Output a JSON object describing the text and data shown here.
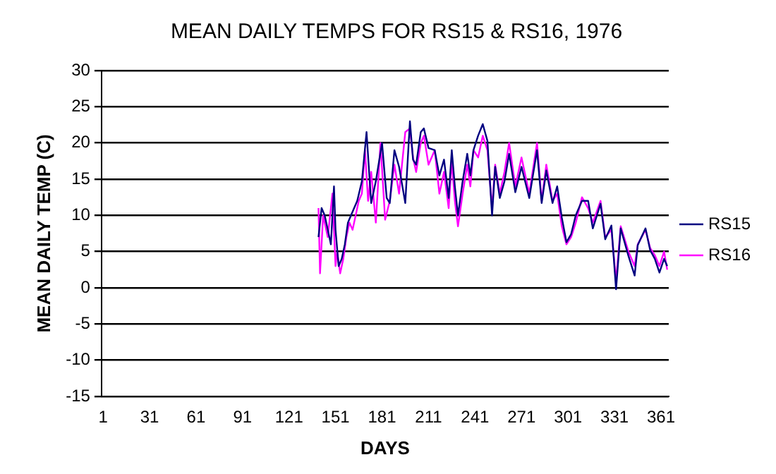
{
  "chart_data": {
    "type": "line",
    "title": "MEAN DAILY TEMPS FOR RS15 & RS16, 1976",
    "xlabel": "DAYS",
    "ylabel": "MEAN DAILY TEMP (C)",
    "xlim": [
      0,
      366
    ],
    "xticks": [
      1,
      31,
      61,
      91,
      121,
      151,
      181,
      211,
      241,
      271,
      301,
      331,
      361
    ],
    "ylim": [
      -15,
      30
    ],
    "yticks": [
      -15,
      -10,
      -5,
      0,
      5,
      10,
      15,
      20,
      25,
      30
    ],
    "grid": "y",
    "legend": "right",
    "series": [
      {
        "name": "RS15",
        "color": "#000080",
        "x": [
          140,
          142,
          144,
          146,
          148,
          149,
          150,
          151,
          153,
          155,
          157,
          159,
          161,
          163,
          165,
          168,
          171,
          174,
          177,
          181,
          184,
          186,
          189,
          192,
          196,
          199,
          201,
          203,
          206,
          208,
          211,
          215,
          218,
          221,
          224,
          226,
          228,
          230,
          233,
          236,
          238,
          240,
          243,
          246,
          249,
          252,
          254,
          257,
          260,
          263,
          267,
          271,
          276,
          281,
          284,
          287,
          291,
          294,
          297,
          300,
          303,
          306,
          310,
          314,
          317,
          322,
          325,
          329,
          332,
          335,
          340,
          344,
          346,
          351,
          354,
          357,
          360,
          363,
          365
        ],
        "values": [
          7,
          11,
          10,
          8,
          6,
          10,
          14,
          8,
          3,
          4,
          6,
          9,
          10,
          11,
          12,
          14.7,
          21.5,
          11.7,
          14.7,
          20,
          12.4,
          11.7,
          19,
          16.7,
          11.7,
          23,
          17.7,
          17,
          21.5,
          22,
          19.3,
          19,
          15.5,
          17.7,
          12.4,
          19,
          14,
          10,
          14.7,
          18.5,
          15.5,
          19,
          21,
          22.6,
          20.3,
          10,
          16.7,
          12.4,
          14.7,
          18.5,
          13.2,
          16.7,
          12.4,
          19,
          11.7,
          16.2,
          11.7,
          14,
          9.7,
          6.3,
          7.4,
          10,
          12,
          12,
          8.2,
          11.6,
          6.7,
          8.6,
          -0.2,
          8.2,
          4.4,
          1.7,
          5.9,
          8.2,
          5.2,
          4,
          2.1,
          4,
          3
        ]
      },
      {
        "name": "RS16",
        "color": "#ff00ff",
        "x": [
          140,
          141,
          143,
          146,
          149,
          151,
          152,
          154,
          156,
          158,
          160,
          162,
          164,
          166,
          168,
          170,
          172,
          174,
          177,
          180,
          183,
          186,
          189,
          192,
          196,
          199,
          201,
          203,
          206,
          208,
          211,
          215,
          218,
          221,
          224,
          226,
          228,
          230,
          233,
          236,
          238,
          240,
          243,
          246,
          249,
          252,
          254,
          257,
          260,
          263,
          267,
          271,
          276,
          281,
          284,
          287,
          291,
          294,
          297,
          300,
          303,
          306,
          310,
          314,
          317,
          322,
          325,
          329,
          332,
          335,
          340,
          344,
          346,
          351,
          354,
          357,
          360,
          363,
          365
        ],
        "values": [
          11,
          2,
          10,
          7,
          13,
          3,
          5,
          2,
          4,
          7,
          9,
          8,
          10,
          12,
          13,
          19,
          12,
          16,
          9,
          20,
          9.4,
          12,
          17,
          13,
          21.5,
          22,
          18,
          16,
          20,
          21,
          17,
          19,
          13,
          16,
          11,
          17.5,
          12,
          8.5,
          13,
          17,
          14,
          19,
          18,
          21,
          19,
          11,
          17,
          13,
          16,
          20,
          14,
          18,
          13,
          20,
          12,
          17,
          12,
          13,
          8.5,
          6,
          7,
          9,
          12.5,
          11,
          9,
          12,
          7,
          8,
          1,
          8.5,
          5,
          3,
          6,
          8,
          5.5,
          4.5,
          3,
          5,
          2.5
        ]
      }
    ]
  }
}
